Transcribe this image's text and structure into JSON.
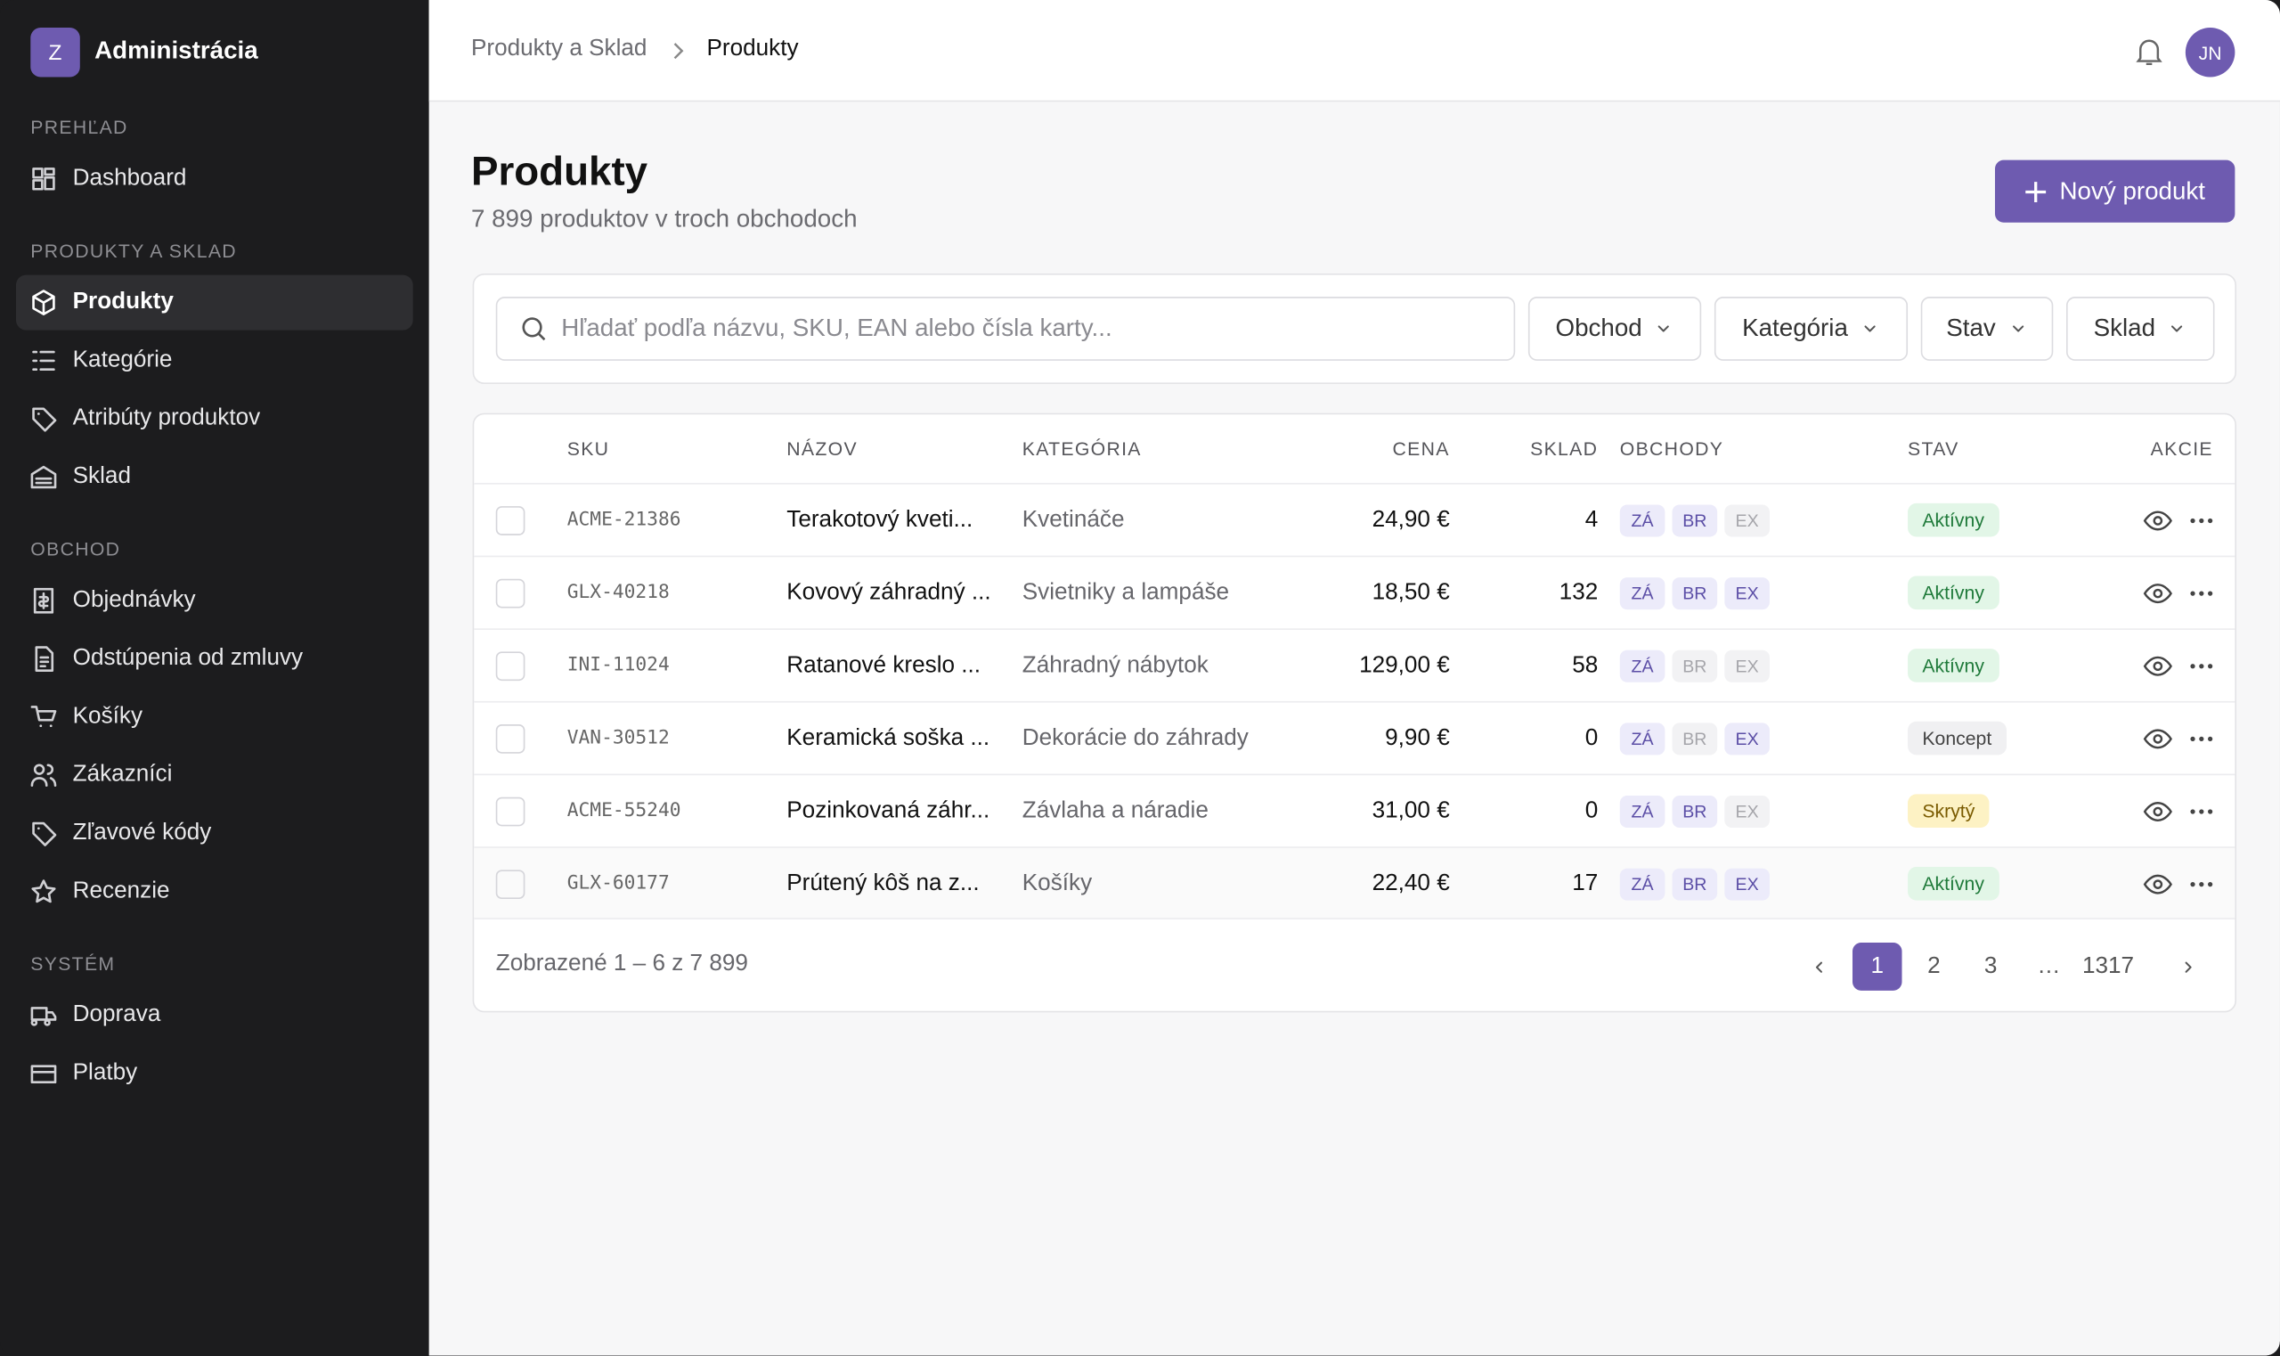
{
  "sidebar": {
    "logo_letter": "Z",
    "title": "Administrácia",
    "sections": [
      {
        "label": "PREHĽAD",
        "items": [
          {
            "label": "Dashboard",
            "active": false
          }
        ]
      },
      {
        "label": "PRODUKTY A SKLAD",
        "items": [
          {
            "label": "Produkty",
            "active": true
          },
          {
            "label": "Kategórie",
            "active": false
          },
          {
            "label": "Atribúty produktov",
            "active": false
          },
          {
            "label": "Sklad",
            "active": false
          }
        ]
      },
      {
        "label": "OBCHOD",
        "items": [
          {
            "label": "Objednávky",
            "active": false
          },
          {
            "label": "Odstúpenia od zmluvy",
            "active": false
          },
          {
            "label": "Košíky",
            "active": false
          },
          {
            "label": "Zákazníci",
            "active": false
          },
          {
            "label": "Zľavové kódy",
            "active": false
          },
          {
            "label": "Recenzie",
            "active": false
          }
        ]
      },
      {
        "label": "SYSTÉM",
        "items": [
          {
            "label": "Doprava",
            "active": false
          },
          {
            "label": "Platby",
            "active": false
          }
        ]
      }
    ]
  },
  "topbar": {
    "breadcrumb": [
      "Produkty a Sklad",
      "Produkty"
    ],
    "avatar": "JN"
  },
  "header": {
    "title": "Produkty",
    "subtitle": "7 899 produktov v troch obchodoch",
    "button": "Nový produkt"
  },
  "filters": {
    "search_placeholder": "Hľadať podľa názvu, SKU, EAN alebo čísla karty...",
    "dropdowns": [
      "Obchod",
      "Kategória",
      "Stav",
      "Sklad"
    ]
  },
  "table": {
    "columns": [
      "SKU",
      "NÁZOV",
      "KATEGÓRIA",
      "CENA",
      "SKLAD",
      "OBCHODY",
      "STAV",
      "AKCIE"
    ],
    "rows": [
      {
        "sku": "ACME-21386",
        "name": "Terakotový kveti...",
        "category": "Kvetináče",
        "price": "24,90 €",
        "stock": "4",
        "stores": [
          {
            "label": "ZÁ",
            "active": true
          },
          {
            "label": "BR",
            "active": true
          },
          {
            "label": "EX",
            "active": false
          }
        ],
        "status": "Aktívny",
        "status_tone": "green"
      },
      {
        "sku": "GLX-40218",
        "name": "Kovový záhradný ...",
        "category": "Svietniky a lampáše",
        "price": "18,50 €",
        "stock": "132",
        "stores": [
          {
            "label": "ZÁ",
            "active": true
          },
          {
            "label": "BR",
            "active": true
          },
          {
            "label": "EX",
            "active": true
          }
        ],
        "status": "Aktívny",
        "status_tone": "green"
      },
      {
        "sku": "INI-11024",
        "name": "Ratanové kreslo ...",
        "category": "Záhradný nábytok",
        "price": "129,00 €",
        "stock": "58",
        "stores": [
          {
            "label": "ZÁ",
            "active": true
          },
          {
            "label": "BR",
            "active": false
          },
          {
            "label": "EX",
            "active": false
          }
        ],
        "status": "Aktívny",
        "status_tone": "green"
      },
      {
        "sku": "VAN-30512",
        "name": "Keramická soška ...",
        "category": "Dekorácie do záhrady",
        "price": "9,90 €",
        "stock": "0",
        "stores": [
          {
            "label": "ZÁ",
            "active": true
          },
          {
            "label": "BR",
            "active": false
          },
          {
            "label": "EX",
            "active": true
          }
        ],
        "status": "Koncept",
        "status_tone": "gray"
      },
      {
        "sku": "ACME-55240",
        "name": "Pozinkovaná záhr...",
        "category": "Závlaha a náradie",
        "price": "31,00 €",
        "stock": "0",
        "stores": [
          {
            "label": "ZÁ",
            "active": true
          },
          {
            "label": "BR",
            "active": true
          },
          {
            "label": "EX",
            "active": false
          }
        ],
        "status": "Skrytý",
        "status_tone": "yellow"
      },
      {
        "sku": "GLX-60177",
        "name": "Prútený kôš na z...",
        "category": "Košíky",
        "price": "22,40 €",
        "stock": "17",
        "stores": [
          {
            "label": "ZÁ",
            "active": true
          },
          {
            "label": "BR",
            "active": true
          },
          {
            "label": "EX",
            "active": true
          }
        ],
        "status": "Aktívny",
        "status_tone": "green"
      }
    ]
  },
  "footer": {
    "summary": "Zobrazené 1 – 6 z 7 899",
    "pages": [
      {
        "label": "1",
        "active": true
      },
      {
        "label": "2",
        "active": false
      },
      {
        "label": "3",
        "active": false
      },
      {
        "label": "…",
        "active": false
      },
      {
        "label": "1317",
        "active": false
      }
    ]
  }
}
